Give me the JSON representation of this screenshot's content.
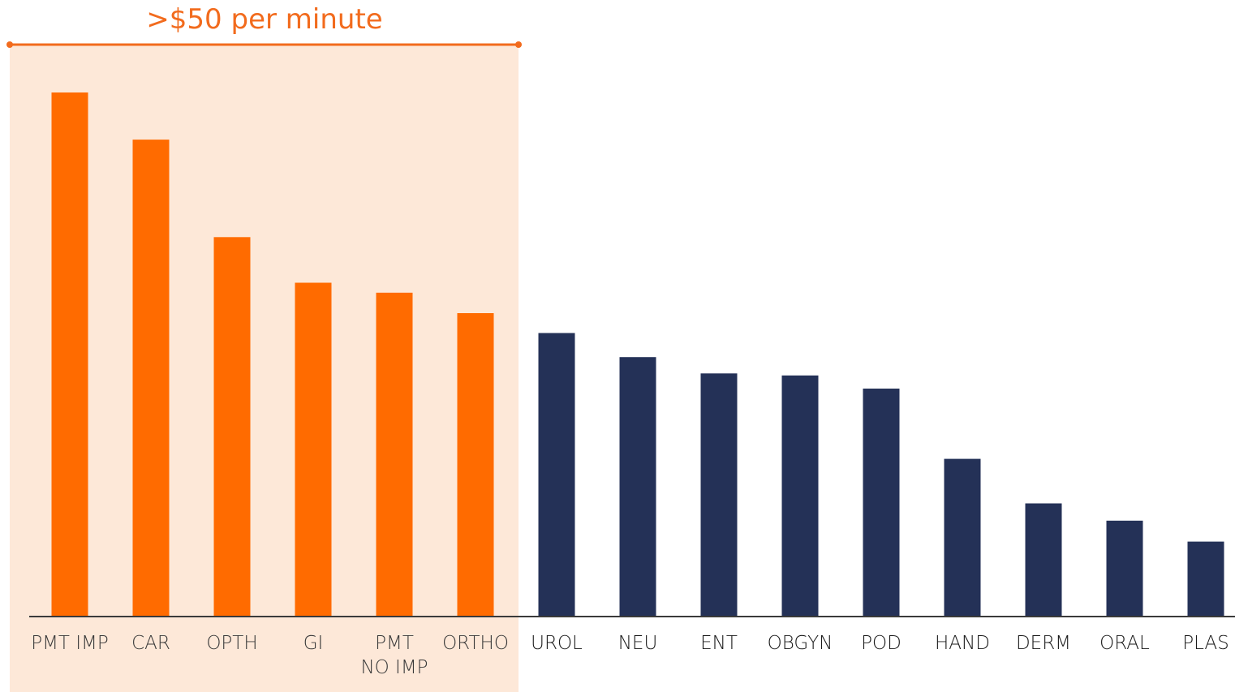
{
  "chart_data": {
    "type": "bar",
    "title": "",
    "xlabel": "",
    "ylabel": "",
    "ylim": [
      0,
      100
    ],
    "categories": [
      [
        "PMT IMP"
      ],
      [
        "CAR"
      ],
      [
        "OPTH"
      ],
      [
        "GI"
      ],
      [
        "PMT",
        "NO IMP"
      ],
      [
        "ORTHO"
      ],
      [
        "UROL"
      ],
      [
        "NEU"
      ],
      [
        "ENT"
      ],
      [
        "OBGYN"
      ],
      [
        "POD"
      ],
      [
        "HAND"
      ],
      [
        "DERM"
      ],
      [
        "ORAL"
      ],
      [
        "PLAS"
      ]
    ],
    "values": [
      100,
      91,
      72.4,
      63.7,
      61.8,
      57.9,
      54.1,
      49.5,
      46.4,
      46,
      43.5,
      30.1,
      21.6,
      18.3,
      14.3
    ],
    "highlight": {
      "label": ">$50 per minute",
      "category_count": 6,
      "fill_color": "#fde8d8",
      "line_color": "#f26b1d"
    },
    "colors": {
      "highlighted_bar": "#ff6b00",
      "other_bar": "#243157",
      "highlighted_label": "#3a3a3a",
      "other_label": "#1a1a1a",
      "axis": "#3a3a3a"
    },
    "grid": false,
    "legend": "none"
  }
}
